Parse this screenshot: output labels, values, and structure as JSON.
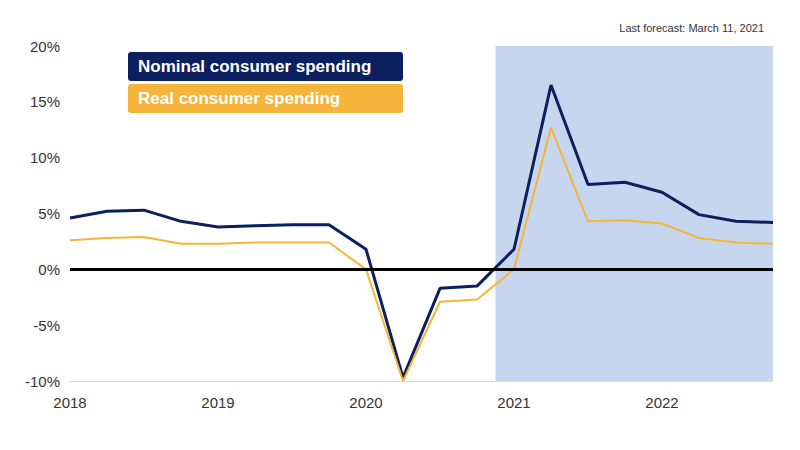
{
  "chart_data": {
    "type": "line",
    "annotation": "Last forecast: March 11, 2021",
    "x": [
      2018,
      2018.25,
      2018.5,
      2018.75,
      2019,
      2019.25,
      2019.5,
      2019.75,
      2020,
      2020.25,
      2020.5,
      2020.75,
      2021,
      2021.25,
      2021.5,
      2021.75,
      2022,
      2022.25,
      2022.5,
      2022.75
    ],
    "series": [
      {
        "name": "Nominal consumer spending",
        "color": "#0c1f5f",
        "values": [
          4.6,
          5.2,
          5.3,
          4.3,
          3.8,
          3.9,
          4.0,
          4.0,
          1.8,
          -9.7,
          -1.7,
          -1.5,
          1.8,
          16.5,
          7.6,
          7.8,
          6.9,
          4.9,
          4.3,
          4.2
        ]
      },
      {
        "name": "Real consumer spending",
        "color": "#f6b53a",
        "values": [
          2.6,
          2.8,
          2.9,
          2.3,
          2.3,
          2.4,
          2.4,
          2.4,
          0.0,
          -10.0,
          -2.9,
          -2.7,
          0.0,
          12.7,
          4.3,
          4.4,
          4.1,
          2.8,
          2.4,
          2.3
        ]
      }
    ],
    "xlim": [
      2018,
      2022.75
    ],
    "xticks": [
      2018,
      2019,
      2020,
      2021,
      2022
    ],
    "ylim": [
      -10,
      20
    ],
    "yticks": [
      {
        "value": -10,
        "label": "-10%"
      },
      {
        "value": -5,
        "label": "-5%"
      },
      {
        "value": 0,
        "label": "0%"
      },
      {
        "value": 5,
        "label": "5%"
      },
      {
        "value": 10,
        "label": "10%"
      },
      {
        "value": 15,
        "label": "15%"
      },
      {
        "value": 20,
        "label": "20%"
      }
    ],
    "forecast_start": 2020.875,
    "baseline": 0,
    "grid": false,
    "legend": "upper left"
  }
}
